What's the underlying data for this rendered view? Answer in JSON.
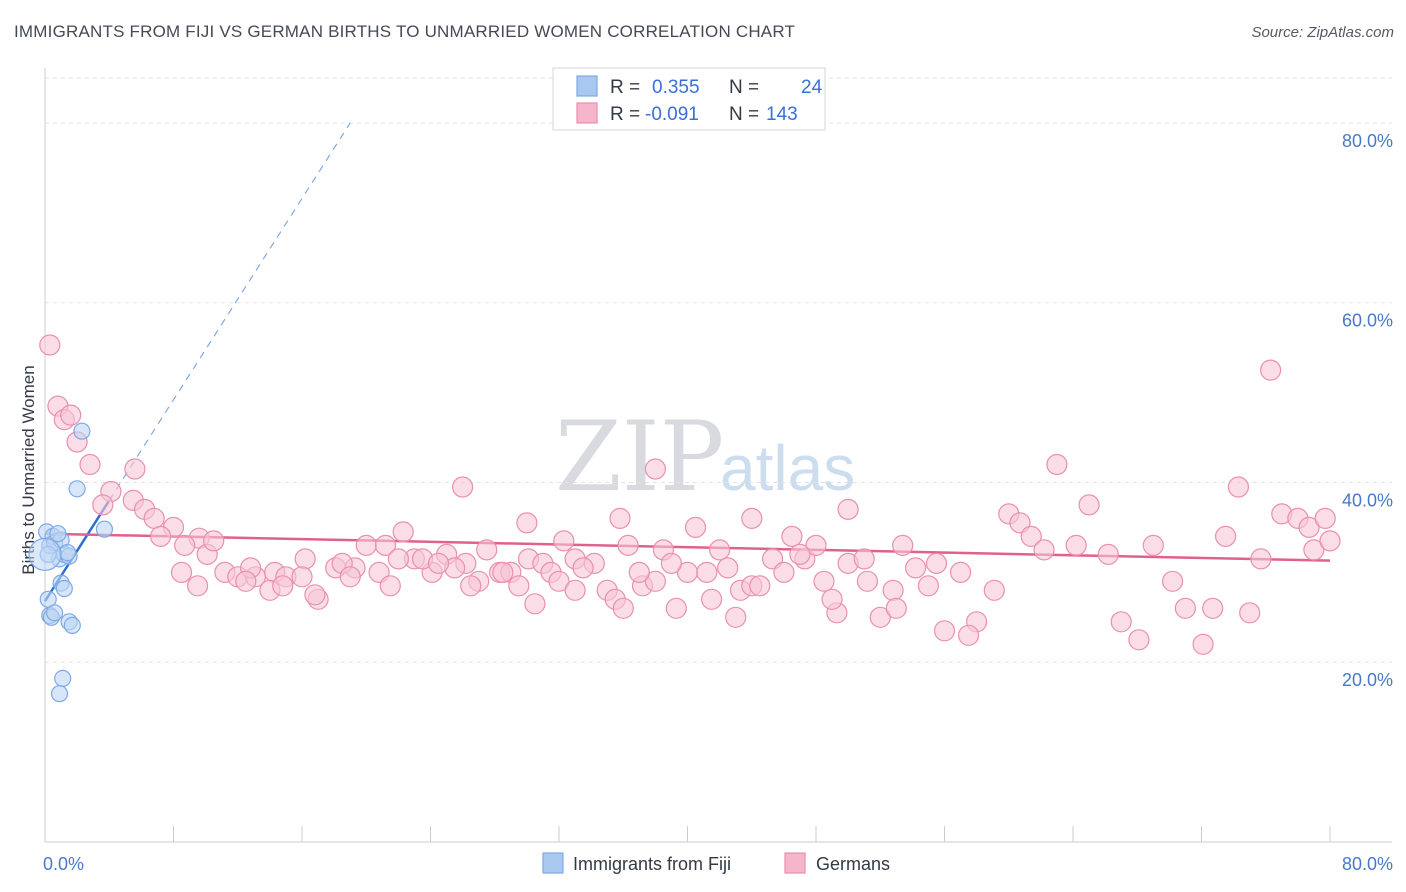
{
  "header": {
    "title": "IMMIGRANTS FROM FIJI VS GERMAN BIRTHS TO UNMARRIED WOMEN CORRELATION CHART",
    "source": "Source: ZipAtlas.com"
  },
  "watermark": {
    "zip": "ZIP",
    "atlas": "atlas"
  },
  "legend_box": {
    "rows": [
      {
        "r_label": "R =",
        "r_value": "0.355",
        "n_label": "N =",
        "n_value": "24",
        "color": "#a9c8f0"
      },
      {
        "r_label": "R =",
        "r_value": "-0.091",
        "n_label": "N =",
        "n_value": "143",
        "color": "#f5b6cb"
      }
    ]
  },
  "bottom_legend": [
    {
      "label": "Immigrants from Fiji",
      "color": "#a9c8f0"
    },
    {
      "label": "Germans",
      "color": "#f5b6cb"
    }
  ],
  "chart_data": {
    "type": "scatter",
    "title": "IMMIGRANTS FROM FIJI VS GERMAN BIRTHS TO UNMARRIED WOMEN CORRELATION CHART",
    "xlabel": "",
    "ylabel": "Births to Unmarried Women",
    "xlim": [
      0,
      80
    ],
    "ylim": [
      0,
      85
    ],
    "x_tick_labels": [
      "0.0%",
      "80.0%"
    ],
    "y_ticks": [
      20,
      40,
      60,
      80
    ],
    "y_tick_labels": [
      "20.0%",
      "40.0%",
      "60.0%",
      "80.0%"
    ],
    "grid": true,
    "series": [
      {
        "name": "Immigrants from Fiji",
        "color": "#7ea9e6",
        "fill": "#bcd5f4",
        "trend": {
          "x0": 0,
          "y0": 26.8,
          "x1": 4.0,
          "y1": 38.0,
          "dash_to_x": 19.0,
          "dash_to_y": 80.0,
          "color": "#2c6fd2"
        },
        "points": [
          [
            0.1,
            34.5
          ],
          [
            0.3,
            33.0
          ],
          [
            0.5,
            34.0
          ],
          [
            0.6,
            33.3
          ],
          [
            0.9,
            31.5
          ],
          [
            1.2,
            32.0
          ],
          [
            1.5,
            31.8
          ],
          [
            2.0,
            39.3
          ],
          [
            2.3,
            45.7
          ],
          [
            3.7,
            34.8
          ],
          [
            0.2,
            27.0
          ],
          [
            0.3,
            25.2
          ],
          [
            0.4,
            25.0
          ],
          [
            0.6,
            25.5
          ],
          [
            1.0,
            28.8
          ],
          [
            1.2,
            28.2
          ],
          [
            1.5,
            24.5
          ],
          [
            1.7,
            24.1
          ],
          [
            1.1,
            18.2
          ],
          [
            0.9,
            16.5
          ],
          [
            1.0,
            33.6
          ],
          [
            0.8,
            34.3
          ],
          [
            0.2,
            32.0
          ],
          [
            1.4,
            32.2
          ]
        ]
      },
      {
        "name": "Germans",
        "color": "#ea8fb0",
        "fill": "#f7c6d6",
        "trend": {
          "x0": 0,
          "y0": 34.3,
          "x1": 80,
          "y1": 31.3,
          "color": "#e0608e"
        },
        "points": [
          [
            0.3,
            55.3
          ],
          [
            0.8,
            48.5
          ],
          [
            1.2,
            47.0
          ],
          [
            1.6,
            47.5
          ],
          [
            2.0,
            44.5
          ],
          [
            2.8,
            42.0
          ],
          [
            5.6,
            41.5
          ],
          [
            4.1,
            39.0
          ],
          [
            5.5,
            38.0
          ],
          [
            3.6,
            37.5
          ],
          [
            6.2,
            37.0
          ],
          [
            6.8,
            36.0
          ],
          [
            8.0,
            35.0
          ],
          [
            7.2,
            34.0
          ],
          [
            9.6,
            33.8
          ],
          [
            10.1,
            32.0
          ],
          [
            8.7,
            33.0
          ],
          [
            11.2,
            30.0
          ],
          [
            12.0,
            29.5
          ],
          [
            13.1,
            29.5
          ],
          [
            14.3,
            30.0
          ],
          [
            15.0,
            29.5
          ],
          [
            16.2,
            31.5
          ],
          [
            17.0,
            27.0
          ],
          [
            18.1,
            30.5
          ],
          [
            19.3,
            30.5
          ],
          [
            20.0,
            33.0
          ],
          [
            21.2,
            33.0
          ],
          [
            22.3,
            34.5
          ],
          [
            23.0,
            31.5
          ],
          [
            24.1,
            30.0
          ],
          [
            25.0,
            32.0
          ],
          [
            26.2,
            31.0
          ],
          [
            27.0,
            29.0
          ],
          [
            28.3,
            30.0
          ],
          [
            29.0,
            30.0
          ],
          [
            30.1,
            31.5
          ],
          [
            31.0,
            31.0
          ],
          [
            31.5,
            30.0
          ],
          [
            32.3,
            33.5
          ],
          [
            33.0,
            31.5
          ],
          [
            34.2,
            31.0
          ],
          [
            35.0,
            28.0
          ],
          [
            35.8,
            36.0
          ],
          [
            36.3,
            33.0
          ],
          [
            37.2,
            28.5
          ],
          [
            38.0,
            29.0
          ],
          [
            39.3,
            26.0
          ],
          [
            40.0,
            30.0
          ],
          [
            41.2,
            30.0
          ],
          [
            42.0,
            32.5
          ],
          [
            43.3,
            28.0
          ],
          [
            44.0,
            28.5
          ],
          [
            45.3,
            31.5
          ],
          [
            46.0,
            30.0
          ],
          [
            47.3,
            31.5
          ],
          [
            48.0,
            33.0
          ],
          [
            49.3,
            25.5
          ],
          [
            50.0,
            31.0
          ],
          [
            51.2,
            29.0
          ],
          [
            52.0,
            25.0
          ],
          [
            52.8,
            28.0
          ],
          [
            53.4,
            33.0
          ],
          [
            54.2,
            30.5
          ],
          [
            55.0,
            28.5
          ],
          [
            56.0,
            23.5
          ],
          [
            57.0,
            30.0
          ],
          [
            58.0,
            24.5
          ],
          [
            59.1,
            28.0
          ],
          [
            60.0,
            36.5
          ],
          [
            60.7,
            35.5
          ],
          [
            61.4,
            34.0
          ],
          [
            62.2,
            32.5
          ],
          [
            63.0,
            42.0
          ],
          [
            64.2,
            33.0
          ],
          [
            65.0,
            37.5
          ],
          [
            66.2,
            32.0
          ],
          [
            67.0,
            24.5
          ],
          [
            68.1,
            22.5
          ],
          [
            69.0,
            33.0
          ],
          [
            70.2,
            29.0
          ],
          [
            71.0,
            26.0
          ],
          [
            72.1,
            22.0
          ],
          [
            72.7,
            26.0
          ],
          [
            73.5,
            34.0
          ],
          [
            74.3,
            39.5
          ],
          [
            75.0,
            25.5
          ],
          [
            75.7,
            31.5
          ],
          [
            76.3,
            52.5
          ],
          [
            77.0,
            36.5
          ],
          [
            78.0,
            36.0
          ],
          [
            78.7,
            35.0
          ],
          [
            79.0,
            32.5
          ],
          [
            79.7,
            36.0
          ],
          [
            80.0,
            33.5
          ],
          [
            26.0,
            39.5
          ],
          [
            30.0,
            35.5
          ],
          [
            38.0,
            41.5
          ],
          [
            44.0,
            36.0
          ],
          [
            50.0,
            37.0
          ],
          [
            8.5,
            30.0
          ],
          [
            9.5,
            28.5
          ],
          [
            12.8,
            30.5
          ],
          [
            14.0,
            28.0
          ],
          [
            16.0,
            29.5
          ],
          [
            18.5,
            31.0
          ],
          [
            20.8,
            30.0
          ],
          [
            22.0,
            31.5
          ],
          [
            23.5,
            31.5
          ],
          [
            25.5,
            30.5
          ],
          [
            27.5,
            32.5
          ],
          [
            29.5,
            28.5
          ],
          [
            32.0,
            29.0
          ],
          [
            33.5,
            30.5
          ],
          [
            35.5,
            27.0
          ],
          [
            37.0,
            30.0
          ],
          [
            38.5,
            32.5
          ],
          [
            40.5,
            35.0
          ],
          [
            42.5,
            30.5
          ],
          [
            44.5,
            28.5
          ],
          [
            46.5,
            34.0
          ],
          [
            48.5,
            29.0
          ],
          [
            51.0,
            31.5
          ],
          [
            53.0,
            26.0
          ],
          [
            55.5,
            31.0
          ],
          [
            57.5,
            23.0
          ],
          [
            10.5,
            33.5
          ],
          [
            12.5,
            29.0
          ],
          [
            14.8,
            28.5
          ],
          [
            16.8,
            27.5
          ],
          [
            19.0,
            29.5
          ],
          [
            21.5,
            28.5
          ],
          [
            24.5,
            31.0
          ],
          [
            26.5,
            28.5
          ],
          [
            28.5,
            30.0
          ],
          [
            30.5,
            26.5
          ],
          [
            33.0,
            28.0
          ],
          [
            36.0,
            26.0
          ],
          [
            39.0,
            31.0
          ],
          [
            41.5,
            27.0
          ],
          [
            43.0,
            25.0
          ],
          [
            47.0,
            32.0
          ],
          [
            49.0,
            27.0
          ]
        ]
      }
    ]
  }
}
